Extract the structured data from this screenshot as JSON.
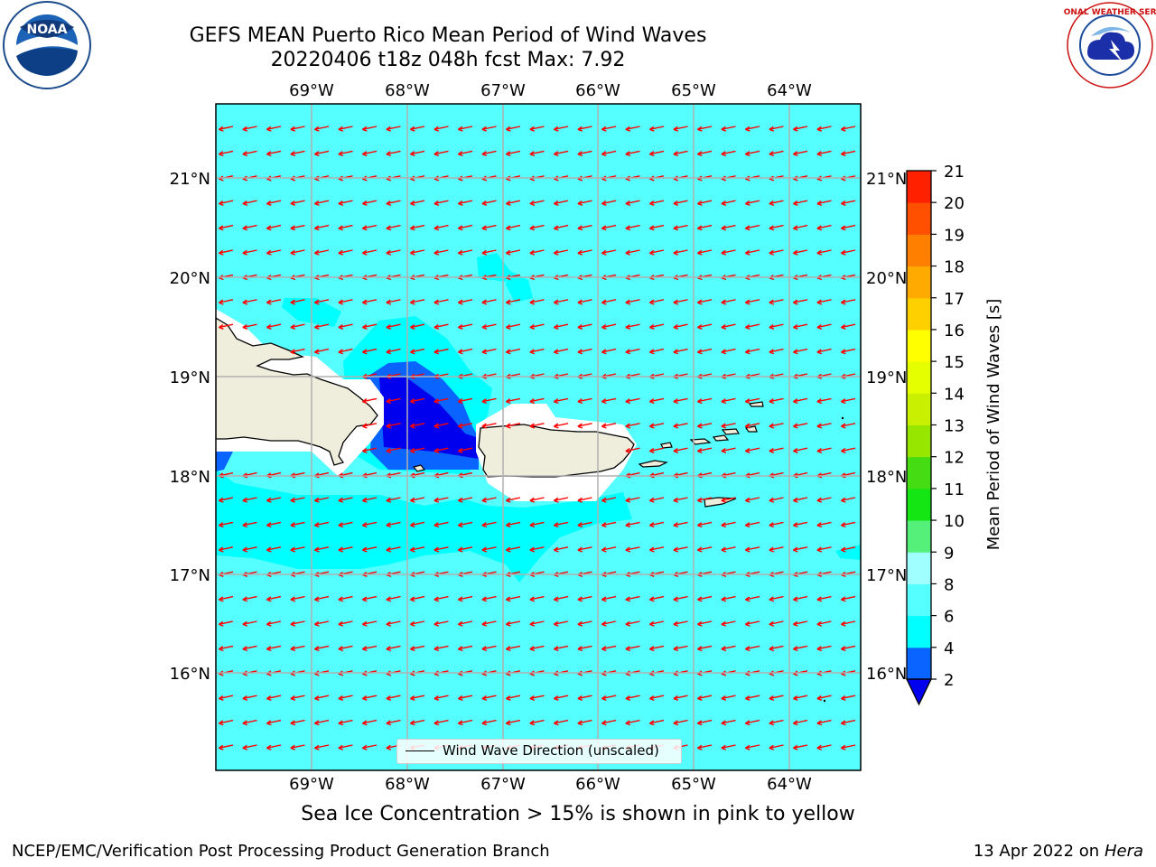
{
  "header": {
    "title_line1": "GEFS MEAN Puerto Rico Mean Period of Wind Waves",
    "title_line2": "20220406 t18z 048h fcst   Max: 7.92"
  },
  "map": {
    "lon_labels": [
      "69°W",
      "68°W",
      "67°W",
      "66°W",
      "65°W",
      "64°W"
    ],
    "lat_labels": [
      "21°N",
      "20°N",
      "19°N",
      "18°N",
      "17°N",
      "16°N"
    ],
    "background_color": "#55ffff",
    "land_color": "#efeddc",
    "arrow_color": "#ff0000",
    "wind_wave_direction": "west-northwest"
  },
  "legend": {
    "label": "Wind Wave Direction (unscaled)"
  },
  "colorbar": {
    "label": "Mean Period of Wind Waves [s]",
    "ticks": [
      "2",
      "4",
      "6",
      "8",
      "9",
      "10",
      "11",
      "12",
      "13",
      "14",
      "15",
      "16",
      "17",
      "18",
      "19",
      "20",
      "21"
    ],
    "colors": [
      "#0a64ff",
      "#00ffff",
      "#55ffff",
      "#a0ffff",
      "#55f07a",
      "#14e614",
      "#46dc14",
      "#96e600",
      "#c8f000",
      "#e6ff00",
      "#ffff00",
      "#ffd000",
      "#ffaa00",
      "#ff8000",
      "#ff5000",
      "#ff2000"
    ],
    "under_color": "#0000ee"
  },
  "footer": {
    "subtitle": "Sea Ice Concentration > 15% is shown in pink to yellow",
    "left": "NCEP/EMC/Verification Post Processing Product Generation Branch",
    "right_date": "13 Apr 2022 on",
    "right_host": "Hera"
  },
  "logos": {
    "noaa_text": "NOAA",
    "nws_text": "NATIONAL WEATHER SERVICE"
  }
}
